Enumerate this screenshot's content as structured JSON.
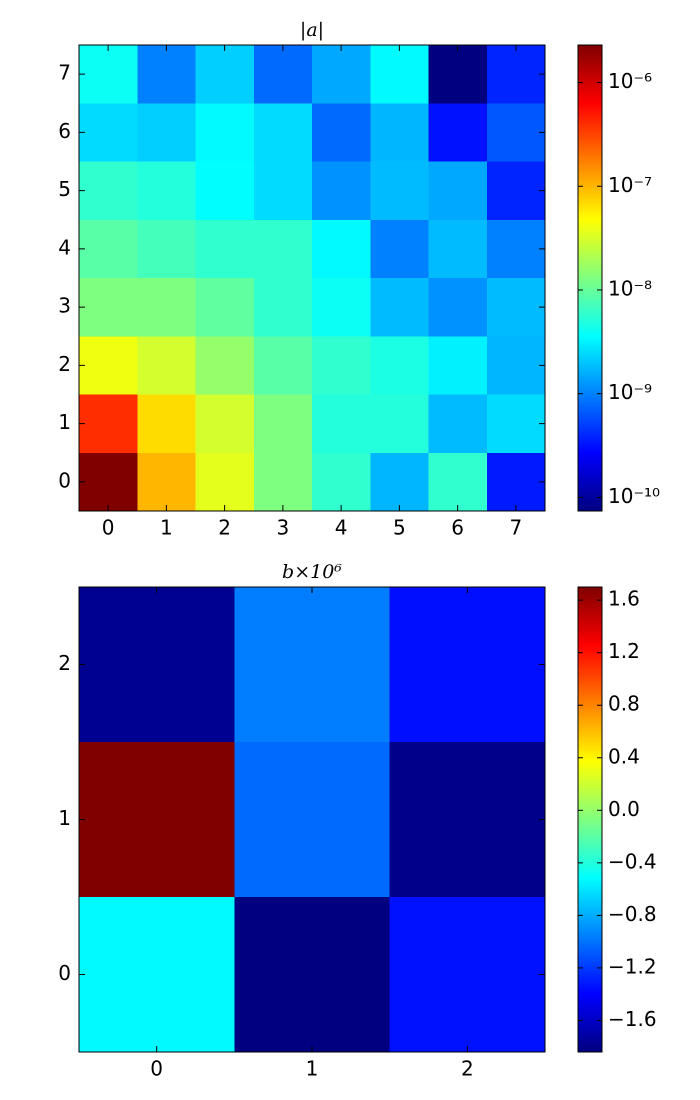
{
  "chart_data": [
    {
      "type": "heatmap",
      "title": "|a|",
      "colormap": "jet",
      "xlim": [
        -0.5,
        7.5
      ],
      "ylim": [
        -0.5,
        7.5
      ],
      "xticks": [
        0,
        1,
        2,
        3,
        4,
        5,
        6,
        7
      ],
      "yticks": [
        0,
        1,
        2,
        3,
        4,
        5,
        6,
        7
      ],
      "values": [
        [
          2.3e-06,
          1e-07,
          3.6e-08,
          1.3e-08,
          5.8e-09,
          1.7e-09,
          5.8e-09,
          3.5e-10
        ],
        [
          4e-07,
          6.8e-08,
          3e-08,
          1.3e-08,
          5.1e-09,
          5.1e-09,
          1.8e-09,
          2.5e-09
        ],
        [
          4.1e-08,
          3e-08,
          1.6e-08,
          8.7e-09,
          5.8e-09,
          4.7e-09,
          3.1e-09,
          1.7e-09
        ],
        [
          1.3e-08,
          1.3e-08,
          9.5e-09,
          5.8e-09,
          4e-09,
          1.8e-09,
          1.2e-09,
          1.8e-09
        ],
        [
          8.7e-09,
          7.1e-09,
          5.8e-09,
          5.8e-09,
          3.4e-09,
          1e-09,
          1.8e-09,
          1e-09
        ],
        [
          5.8e-09,
          5.1e-09,
          3.5e-09,
          2.5e-09,
          1.2e-09,
          1.8e-09,
          1.5e-09,
          3.9e-10
        ],
        [
          2.5e-09,
          2.2e-09,
          3.4e-09,
          2.5e-09,
          7.9e-10,
          1.7e-09,
          3.2e-10,
          6.5e-10
        ],
        [
          4e-09,
          1e-09,
          2.2e-09,
          7.9e-10,
          1.5e-09,
          3.4e-09,
          7.4e-11,
          3.9e-10
        ]
      ],
      "clim": [
        7.4e-11,
        2.3e-06
      ],
      "log_scale": true,
      "cticks": [
        {
          "value": 1e-10,
          "label": "10⁻¹⁰"
        },
        {
          "value": 1e-09,
          "label": "10⁻⁹"
        },
        {
          "value": 1e-08,
          "label": "10⁻⁸"
        },
        {
          "value": 1e-07,
          "label": "10⁻⁷"
        },
        {
          "value": 1e-06,
          "label": "10⁻⁶"
        }
      ]
    },
    {
      "type": "heatmap",
      "title": "b×10⁶",
      "colormap": "jet",
      "xlim": [
        -0.5,
        2.5
      ],
      "ylim": [
        -0.5,
        2.5
      ],
      "xticks": [
        0,
        1,
        2
      ],
      "yticks": [
        0,
        1,
        2
      ],
      "values": [
        [
          -0.53,
          -1.84,
          -1.34
        ],
        [
          1.7,
          -1.03,
          -1.8
        ],
        [
          -1.78,
          -0.96,
          -1.35
        ]
      ],
      "clim": [
        -1.84,
        1.7
      ],
      "log_scale": false,
      "cticks": [
        {
          "value": -1.6,
          "label": "−1.6"
        },
        {
          "value": -1.2,
          "label": "−1.2"
        },
        {
          "value": -0.8,
          "label": "−0.8"
        },
        {
          "value": -0.4,
          "label": "−0.4"
        },
        {
          "value": 0,
          "label": "0.0"
        },
        0.4,
        0.8,
        1.2,
        1.6
      ]
    }
  ]
}
